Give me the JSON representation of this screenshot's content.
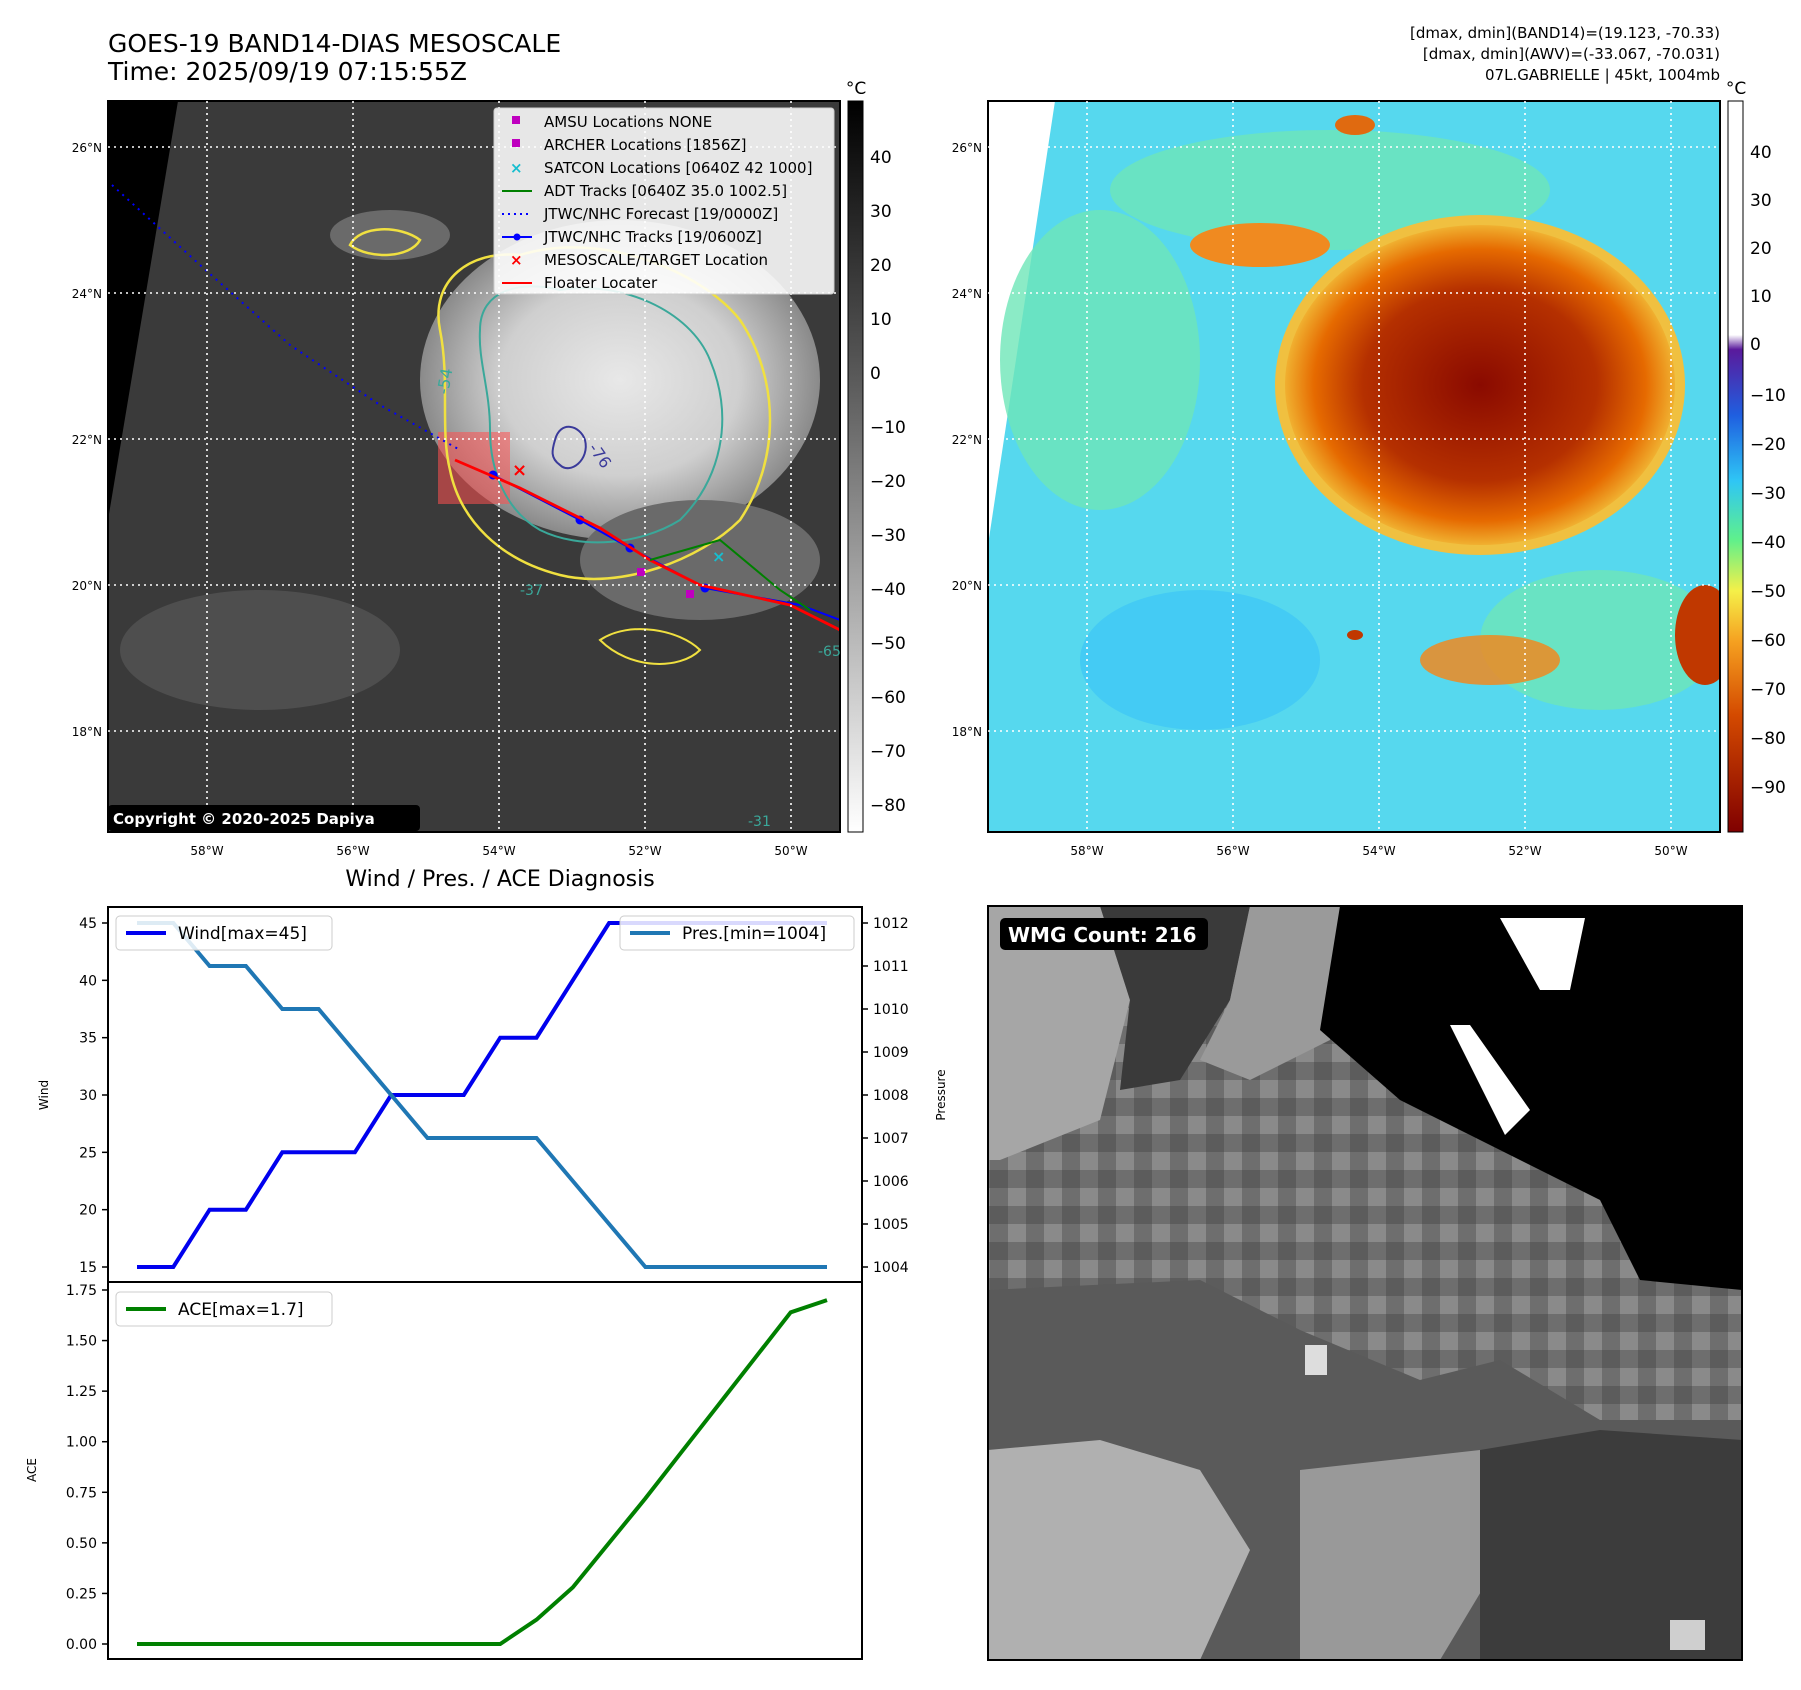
{
  "header": {
    "title_line1": "GOES-19 BAND14-DIAS MESOSCALE",
    "title_line2": "Time: 2025/09/19 07:15:55Z",
    "info_line1": "[dmax, dmin](BAND14)=(19.123, -70.33)",
    "info_line2": "[dmax, dmin](AWV)=(-33.067, -70.031)",
    "info_line3": "07L.GABRIELLE | 45kt, 1004mb"
  },
  "colors": {
    "wind": "#0000ee",
    "pressure": "#1f77b4",
    "ace": "#008000",
    "track": "#0000ff",
    "floater": "#ff0000",
    "adt": "#008000",
    "amsu": "#bf00bf",
    "satcon": "#17becf"
  },
  "map_ir": {
    "lat_labels": [
      "26°N",
      "24°N",
      "22°N",
      "20°N",
      "18°N"
    ],
    "lon_labels": [
      "58°W",
      "56°W",
      "54°W",
      "52°W",
      "50°W"
    ],
    "contour_labels": [
      "-54",
      "-76",
      "-31",
      "-37",
      "-65"
    ],
    "copyright": "Copyright © 2020-2025 Dapiya",
    "colorbar_unit": "°C",
    "colorbar_ticks": [
      "40",
      "30",
      "20",
      "10",
      "0",
      "−10",
      "−20",
      "−30",
      "−40",
      "−50",
      "−60",
      "−70",
      "−80"
    ],
    "legend": [
      {
        "label": "AMSU Locations NONE",
        "marker": "square-marker-icon"
      },
      {
        "label": "ARCHER Locations [1856Z]",
        "marker": "square-marker-icon"
      },
      {
        "label": "SATCON Locations [0640Z 42 1000]",
        "marker": "x-marker-icon"
      },
      {
        "label": "ADT Tracks [0640Z 35.0 1002.5]",
        "marker": "solid-line-icon"
      },
      {
        "label": "JTWC/NHC Forecast [19/0000Z]",
        "marker": "dotted-line-icon"
      },
      {
        "label": "JTWC/NHC Tracks [19/0600Z]",
        "marker": "line-dot-icon"
      },
      {
        "label": "MESOSCALE/TARGET Location",
        "marker": "x-marker-icon"
      },
      {
        "label": "Floater Locater",
        "marker": "solid-line-icon"
      }
    ]
  },
  "map_wv": {
    "lat_labels": [
      "26°N",
      "24°N",
      "22°N",
      "20°N",
      "18°N"
    ],
    "lon_labels": [
      "58°W",
      "56°W",
      "54°W",
      "52°W",
      "50°W"
    ],
    "colorbar_unit": "°C",
    "colorbar_ticks": [
      "40",
      "30",
      "20",
      "10",
      "0",
      "−10",
      "−20",
      "−30",
      "−40",
      "−50",
      "−60",
      "−70",
      "−80",
      "−90"
    ]
  },
  "diagnosis": {
    "title": "Wind / Pres. / ACE Diagnosis",
    "wind_ylabel": "Wind",
    "pressure_ylabel": "Pressure",
    "ace_ylabel": "ACE",
    "wind_legend": "Wind[max=45]",
    "pressure_legend": "Pres.[min=1004]",
    "ace_legend": "ACE[max=1.7]",
    "wind_ticks": [
      "45",
      "40",
      "35",
      "30",
      "25",
      "20",
      "15"
    ],
    "pressure_ticks": [
      "1012",
      "1011",
      "1010",
      "1009",
      "1008",
      "1007",
      "1006",
      "1005",
      "1004"
    ],
    "ace_ticks": [
      "1.75",
      "1.50",
      "1.25",
      "1.00",
      "0.75",
      "0.50",
      "0.25",
      "0.00"
    ]
  },
  "wmg": {
    "label": "WMG Count: 216"
  },
  "chart_data": [
    {
      "type": "line",
      "title": "Wind / Pres. / ACE Diagnosis",
      "x": [
        0,
        1,
        2,
        3,
        4,
        5,
        6,
        7,
        8,
        9,
        10,
        11,
        12,
        13,
        14,
        15,
        16,
        17,
        18,
        19
      ],
      "series": [
        {
          "name": "Wind[max=45]",
          "axis": "left",
          "values": [
            15,
            15,
            20,
            20,
            25,
            25,
            25,
            30,
            30,
            30,
            35,
            35,
            40,
            45,
            45,
            45,
            45,
            45,
            45,
            45
          ]
        },
        {
          "name": "Pres.[min=1004]",
          "axis": "right",
          "values": [
            1012,
            1012,
            1011,
            1011,
            1010,
            1010,
            1009,
            1008,
            1007,
            1007,
            1007,
            1007,
            1006,
            1005,
            1004,
            1004,
            1004,
            1004,
            1004,
            1004
          ]
        }
      ],
      "ylabel": "Wind",
      "ylabel_right": "Pressure",
      "ylim": [
        14.5,
        45.5
      ],
      "ylim_right": [
        1003.9,
        1012.1
      ],
      "legend": [
        "top-left",
        "top-right"
      ]
    },
    {
      "type": "line",
      "x": [
        0,
        1,
        2,
        3,
        4,
        5,
        6,
        7,
        8,
        9,
        10,
        11,
        12,
        13,
        14,
        15,
        16,
        17,
        18,
        19
      ],
      "series": [
        {
          "name": "ACE[max=1.7]",
          "values": [
            0,
            0,
            0,
            0,
            0,
            0,
            0,
            0,
            0,
            0,
            0,
            0.12,
            0.28,
            0.5,
            0.72,
            0.95,
            1.18,
            1.41,
            1.64,
            1.7
          ]
        }
      ],
      "ylabel": "ACE",
      "ylim": [
        -0.09,
        1.75
      ],
      "legend": "top-left"
    }
  ]
}
